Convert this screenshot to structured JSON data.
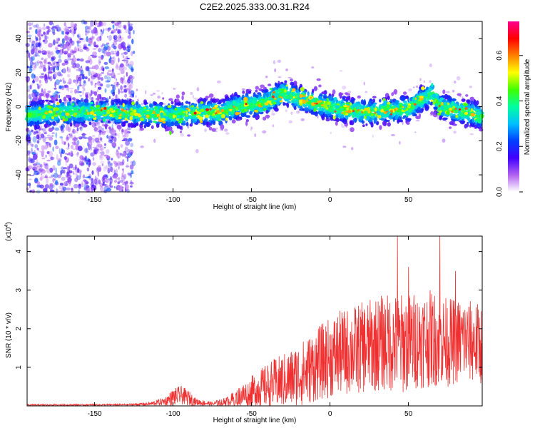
{
  "title": "C2E2.2025.333.00.31.R24",
  "chart_data": [
    {
      "type": "heatmap",
      "name": "spectrogram",
      "xlabel": "Height of straight line (km)",
      "ylabel": "Frequency (Hz)",
      "xlim": [
        -193,
        97
      ],
      "ylim": [
        -50,
        50
      ],
      "xticks": [
        -150,
        -100,
        -50,
        0,
        50
      ],
      "xtick_labels": [
        "-150",
        "-100",
        "-50",
        "0",
        "50"
      ],
      "yticks": [
        -40,
        -20,
        0,
        20,
        40
      ],
      "ytick_labels": [
        "-40",
        "-20",
        "0",
        "20",
        "40"
      ],
      "colorbar": {
        "label": "Normalized spectral amplitude",
        "range": [
          0.0,
          0.75
        ],
        "ticks": [
          0.0,
          0.2,
          0.4,
          0.6
        ],
        "tick_labels": [
          "0.0",
          "0.2",
          "0.4",
          "0.6"
        ],
        "colormap": [
          "#ffffff",
          "#b060f0",
          "#4000ff",
          "#0040ff",
          "#00c0ff",
          "#00ffa0",
          "#40ff00",
          "#ffff00",
          "#ff8000",
          "#ff0000",
          "#ff0090"
        ]
      },
      "ridge": {
        "x": [
          -193,
          -180,
          -160,
          -140,
          -120,
          -100,
          -80,
          -70,
          -60,
          -50,
          -40,
          -30,
          -20,
          -10,
          0,
          10,
          20,
          30,
          40,
          50,
          60,
          65,
          70,
          80,
          90,
          97
        ],
        "freq_hz": [
          -5,
          -4,
          -3,
          -3,
          -4,
          -5,
          -3,
          -4,
          0,
          1,
          3,
          8,
          5,
          2,
          0,
          -2,
          -3,
          -3,
          -2,
          -1,
          5,
          8,
          0,
          -2,
          -4,
          -6
        ]
      },
      "noisy_region_km": [
        -193,
        -125
      ]
    },
    {
      "type": "line",
      "name": "snr",
      "xlabel": "Height of straight line (km)",
      "ylabel": "SNR (10 * v/v)",
      "y_multiplier": "(x10",
      "y_multiplier_exp": "4",
      "y_multiplier_close": ")",
      "xlim": [
        -193,
        97
      ],
      "ylim": [
        0,
        4.4
      ],
      "xticks": [
        -150,
        -100,
        -50,
        0,
        50
      ],
      "xtick_labels": [
        "-150",
        "-100",
        "-50",
        "0",
        "50"
      ],
      "yticks": [
        1,
        2,
        3,
        4
      ],
      "ytick_labels": [
        "1",
        "2",
        "3",
        "4"
      ],
      "color": "#f03030",
      "envelope": {
        "x": [
          -193,
          -130,
          -115,
          -105,
          -100,
          -95,
          -90,
          -85,
          -75,
          -65,
          -55,
          -45,
          -35,
          -25,
          -15,
          -5,
          5,
          15,
          25,
          35,
          45,
          55,
          65,
          75,
          85,
          97
        ],
        "mean": [
          0.02,
          0.03,
          0.05,
          0.12,
          0.22,
          0.28,
          0.2,
          0.1,
          0.05,
          0.12,
          0.28,
          0.45,
          0.58,
          0.7,
          0.9,
          1.15,
          1.35,
          1.45,
          1.55,
          1.65,
          1.6,
          1.7,
          1.75,
          1.65,
          1.7,
          1.6
        ],
        "spread": [
          0.02,
          0.02,
          0.04,
          0.1,
          0.2,
          0.22,
          0.18,
          0.08,
          0.05,
          0.12,
          0.3,
          0.45,
          0.6,
          0.7,
          0.8,
          0.9,
          1.0,
          1.05,
          1.1,
          1.15,
          1.2,
          1.15,
          1.15,
          1.05,
          1.0,
          0.95
        ]
      },
      "peaks": [
        {
          "x": 43,
          "y": 4.4
        },
        {
          "x": 70,
          "y": 4.4
        },
        {
          "x": 50,
          "y": 3.6
        },
        {
          "x": 80,
          "y": 3.5
        }
      ]
    }
  ]
}
